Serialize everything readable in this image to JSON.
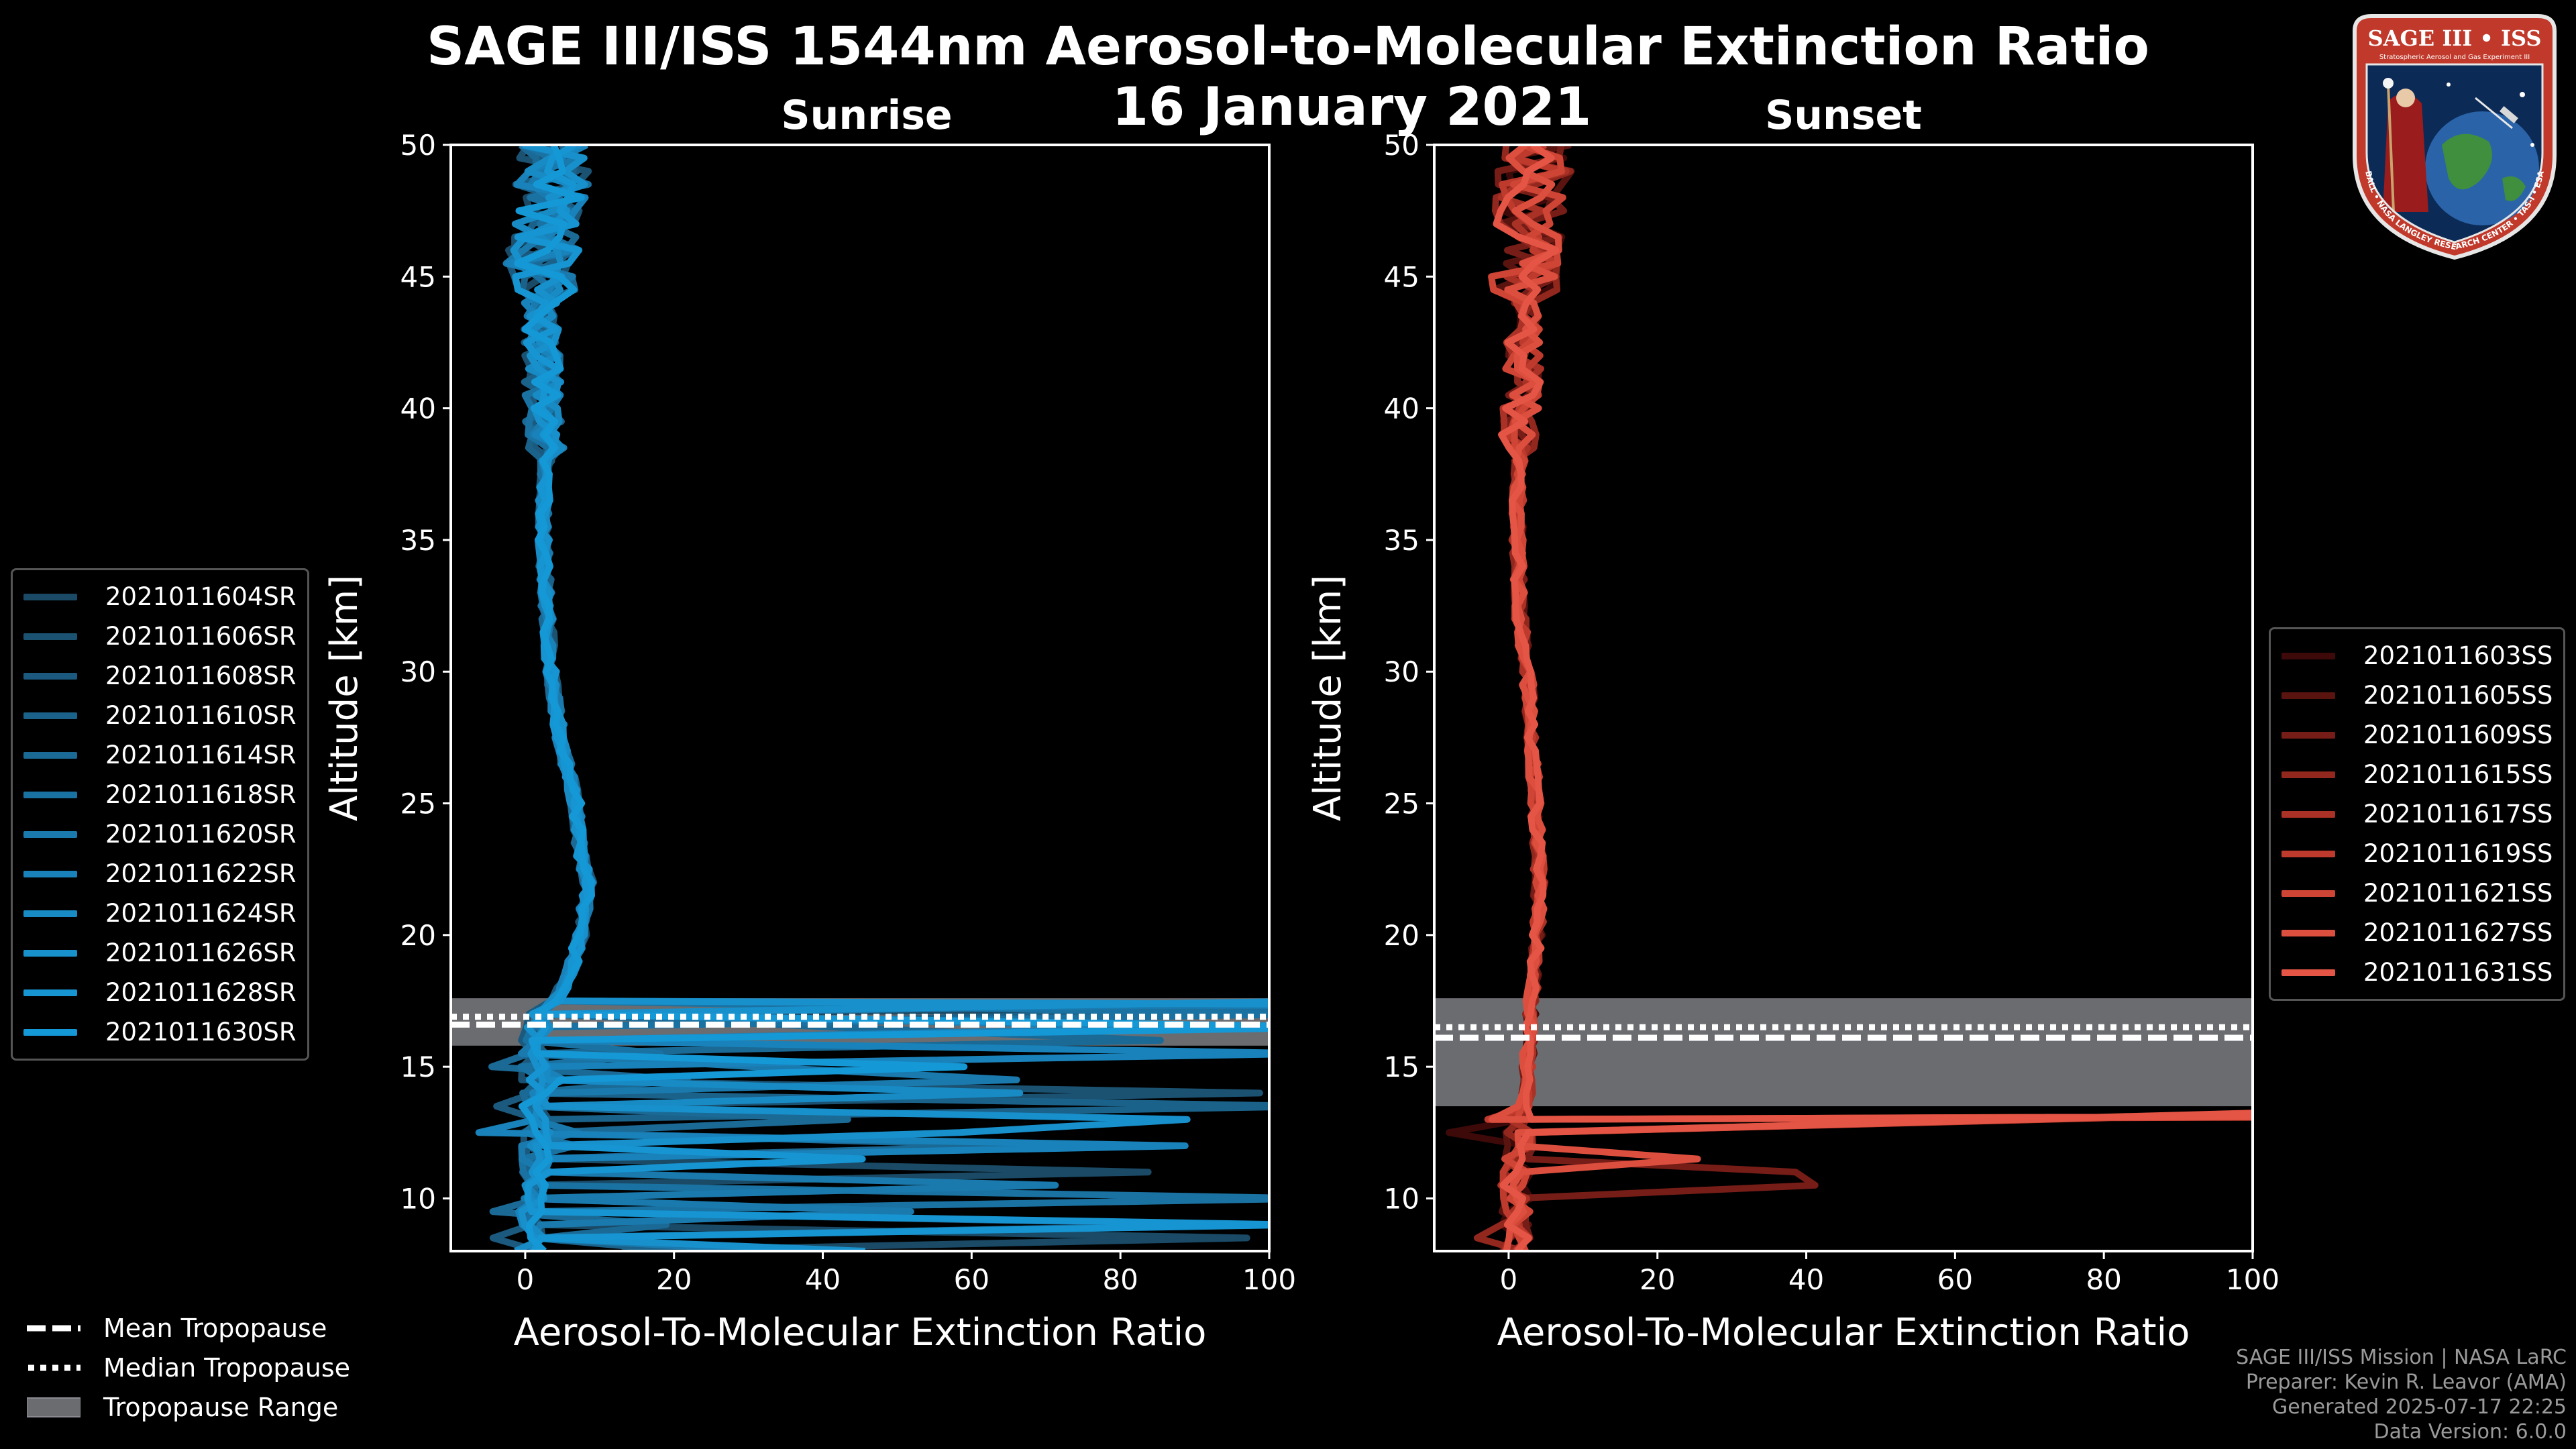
{
  "figure": {
    "title": "SAGE III/ISS 1544nm Aerosol-to-Molecular Extinction Ratio",
    "subtitle_date": "16 January 2021"
  },
  "chart_data": [
    {
      "type": "line",
      "panel": "left",
      "title": "Sunrise",
      "xlabel": "Aerosol-To-Molecular Extinction Ratio",
      "ylabel": "Altitude [km]",
      "xlim": [
        -10,
        100
      ],
      "ylim": [
        8,
        50
      ],
      "xticks": [
        0,
        20,
        40,
        60,
        80,
        100
      ],
      "yticks": [
        10,
        15,
        20,
        25,
        30,
        35,
        40,
        45,
        50
      ],
      "tropopause": {
        "mean_km": 16.6,
        "median_km": 16.9,
        "range_km": [
          15.8,
          17.6
        ]
      },
      "base_profile": {
        "altitudes_km": [
          8,
          9,
          10,
          11,
          12,
          13,
          14,
          15,
          16,
          16.5,
          17,
          17.5,
          18,
          19,
          20,
          21,
          22,
          23,
          24,
          25,
          26,
          27,
          28,
          29,
          30,
          31,
          32,
          33,
          34,
          35,
          36,
          37,
          38,
          39,
          40,
          41,
          42,
          43,
          44,
          45,
          46,
          47,
          48,
          49,
          50
        ],
        "values": [
          1,
          1,
          1,
          1.5,
          1.5,
          1.5,
          1,
          1,
          1.2,
          1.5,
          2.5,
          4,
          5,
          6.5,
          7.5,
          8,
          8.5,
          7.5,
          7,
          6.8,
          6,
          5,
          4.5,
          4,
          3.5,
          3.2,
          3,
          2.8,
          2.6,
          2.5,
          2.5,
          2.6,
          2.8,
          2.6,
          2.4,
          2.3,
          2.2,
          2.2,
          2.2,
          2.3,
          2.5,
          3,
          3.5,
          3.8,
          4
        ]
      },
      "series": [
        {
          "name": "2021011604SR",
          "color": "#1a4a66"
        },
        {
          "name": "2021011606SR",
          "color": "#1b5272"
        },
        {
          "name": "2021011608SR",
          "color": "#1b5a7e"
        },
        {
          "name": "2021011610SR",
          "color": "#1b628a"
        },
        {
          "name": "2021011614SR",
          "color": "#1b6a96"
        },
        {
          "name": "2021011618SR",
          "color": "#1a72a2"
        },
        {
          "name": "2021011620SR",
          "color": "#1a7aae"
        },
        {
          "name": "2021011622SR",
          "color": "#1982ba"
        },
        {
          "name": "2021011624SR",
          "color": "#188ac4"
        },
        {
          "name": "2021011626SR",
          "color": "#1790cc"
        },
        {
          "name": "2021011628SR",
          "color": "#1695d2"
        },
        {
          "name": "2021011630SR",
          "color": "#1598d6"
        }
      ]
    },
    {
      "type": "line",
      "panel": "right",
      "title": "Sunset",
      "xlabel": "Aerosol-To-Molecular Extinction Ratio",
      "ylabel": "Altitude [km]",
      "xlim": [
        -10,
        100
      ],
      "ylim": [
        8,
        50
      ],
      "xticks": [
        0,
        20,
        40,
        60,
        80,
        100
      ],
      "yticks": [
        10,
        15,
        20,
        25,
        30,
        35,
        40,
        45,
        50
      ],
      "tropopause": {
        "mean_km": 16.1,
        "median_km": 16.5,
        "range_km": [
          13.5,
          17.6
        ]
      },
      "base_profile": {
        "altitudes_km": [
          8,
          9,
          10,
          11,
          12,
          13,
          14,
          15,
          16,
          17,
          18,
          19,
          20,
          21,
          22,
          23,
          24,
          25,
          26,
          27,
          28,
          29,
          30,
          31,
          32,
          33,
          34,
          35,
          36,
          37,
          38,
          39,
          40,
          41,
          42,
          43,
          44,
          45,
          46,
          47,
          48,
          49,
          50
        ],
        "values": [
          1,
          1,
          1,
          1.2,
          1.5,
          1.5,
          2.5,
          2.5,
          2.8,
          3,
          3.2,
          3.5,
          3.8,
          4,
          4.2,
          4,
          3.8,
          3.6,
          3.4,
          3.2,
          3,
          2.8,
          2.4,
          2,
          1.6,
          1.4,
          1.3,
          1.2,
          1.2,
          1.3,
          1.5,
          1.5,
          1.6,
          1.8,
          2,
          2.1,
          2.1,
          2.2,
          2.4,
          2.6,
          3,
          3.5,
          4
        ]
      },
      "series": [
        {
          "name": "2021011603SS",
          "color": "#3d0a09"
        },
        {
          "name": "2021011605SS",
          "color": "#5a1410"
        },
        {
          "name": "2021011609SS",
          "color": "#771d17"
        },
        {
          "name": "2021011615SS",
          "color": "#92271e"
        },
        {
          "name": "2021011617SS",
          "color": "#a93125"
        },
        {
          "name": "2021011619SS",
          "color": "#bd3a2d"
        },
        {
          "name": "2021011621SS",
          "color": "#cf4535"
        },
        {
          "name": "2021011627SS",
          "color": "#dc4e3e"
        },
        {
          "name": "2021011631SS",
          "color": "#e55545"
        }
      ]
    }
  ],
  "tropopause_legend": [
    {
      "style": "dashed",
      "label": "Mean Tropopause"
    },
    {
      "style": "dotted",
      "label": "Median Tropopause"
    },
    {
      "style": "range",
      "label": "Tropopause Range"
    }
  ],
  "credits": [
    "SAGE III/ISS Mission | NASA LaRC",
    "Preparer: Kevin R. Leavor (AMA)",
    "Generated 2025-07-17 22:25",
    "Data Version: 6.0.0"
  ],
  "logo": {
    "title": "SAGE III • ISS",
    "subtitle": "Stratospheric Aerosol and Gas Experiment III",
    "ring_text": "BALL • NASA LANGLEY RESEARCH CENTER • TAS-I • ESA"
  }
}
